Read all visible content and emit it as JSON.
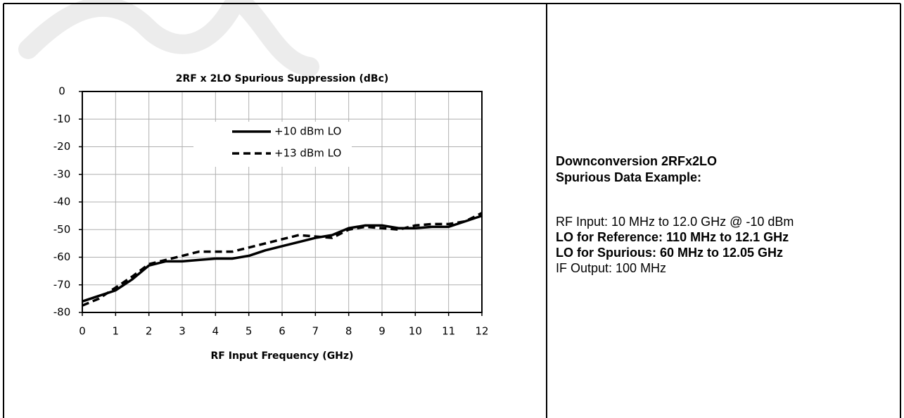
{
  "chart_data": {
    "type": "line",
    "title": "2RF x 2LO Spurious Suppression (dBc)",
    "x_label": "RF Input Frequency (GHz)",
    "x": [
      0,
      0.5,
      1,
      1.5,
      2,
      2.5,
      3,
      3.5,
      4,
      4.5,
      5,
      5.5,
      6,
      6.5,
      7,
      7.5,
      8,
      8.5,
      9,
      9.5,
      10,
      10.5,
      11,
      11.5,
      12
    ],
    "series": [
      {
        "name": "+10 dBm LO",
        "color": "#000000",
        "dash": "solid",
        "values": [
          -76,
          -74,
          -72,
          -68,
          -63,
          -61.5,
          -61.5,
          -61,
          -60.5,
          -60.5,
          -59.5,
          -57.5,
          -56,
          -54.5,
          -53,
          -52,
          -49.5,
          -48.5,
          -48.5,
          -49.5,
          -49.5,
          -49,
          -49,
          -47,
          -45
        ]
      },
      {
        "name": "+13 dBm LO",
        "color": "#000000",
        "dash": "dashed",
        "values": [
          -77.5,
          -75,
          -71,
          -67,
          -62.5,
          -61,
          -59.5,
          -58,
          -58,
          -58,
          -56.5,
          -55,
          -53.5,
          -52,
          -52.5,
          -53,
          -50,
          -49,
          -49.5,
          -50,
          -48.5,
          -48,
          -48,
          -47,
          -44
        ]
      }
    ],
    "xlim": [
      0,
      12
    ],
    "xticks": [
      0,
      1,
      2,
      3,
      4,
      5,
      6,
      7,
      8,
      9,
      10,
      11,
      12
    ],
    "ylim": [
      -80,
      0
    ],
    "yticks": [
      0,
      -10,
      -20,
      -30,
      -40,
      -50,
      -60,
      -70,
      -80
    ],
    "grid": true,
    "legend": "top-center"
  },
  "notes": {
    "heading": [
      "Downconversion 2RFx2LO",
      "Spurious Data Example:"
    ],
    "lines": [
      {
        "text": "RF Input: 10 MHz to 12.0 GHz @ -10 dBm",
        "bold": false
      },
      {
        "text": "LO for Reference: 110 MHz to 12.1 GHz",
        "bold": true
      },
      {
        "text": "LO for Spurious: 60 MHz to 12.05 GHz",
        "bold": true
      },
      {
        "text": "IF Output: 100 MHz",
        "bold": false
      }
    ]
  }
}
